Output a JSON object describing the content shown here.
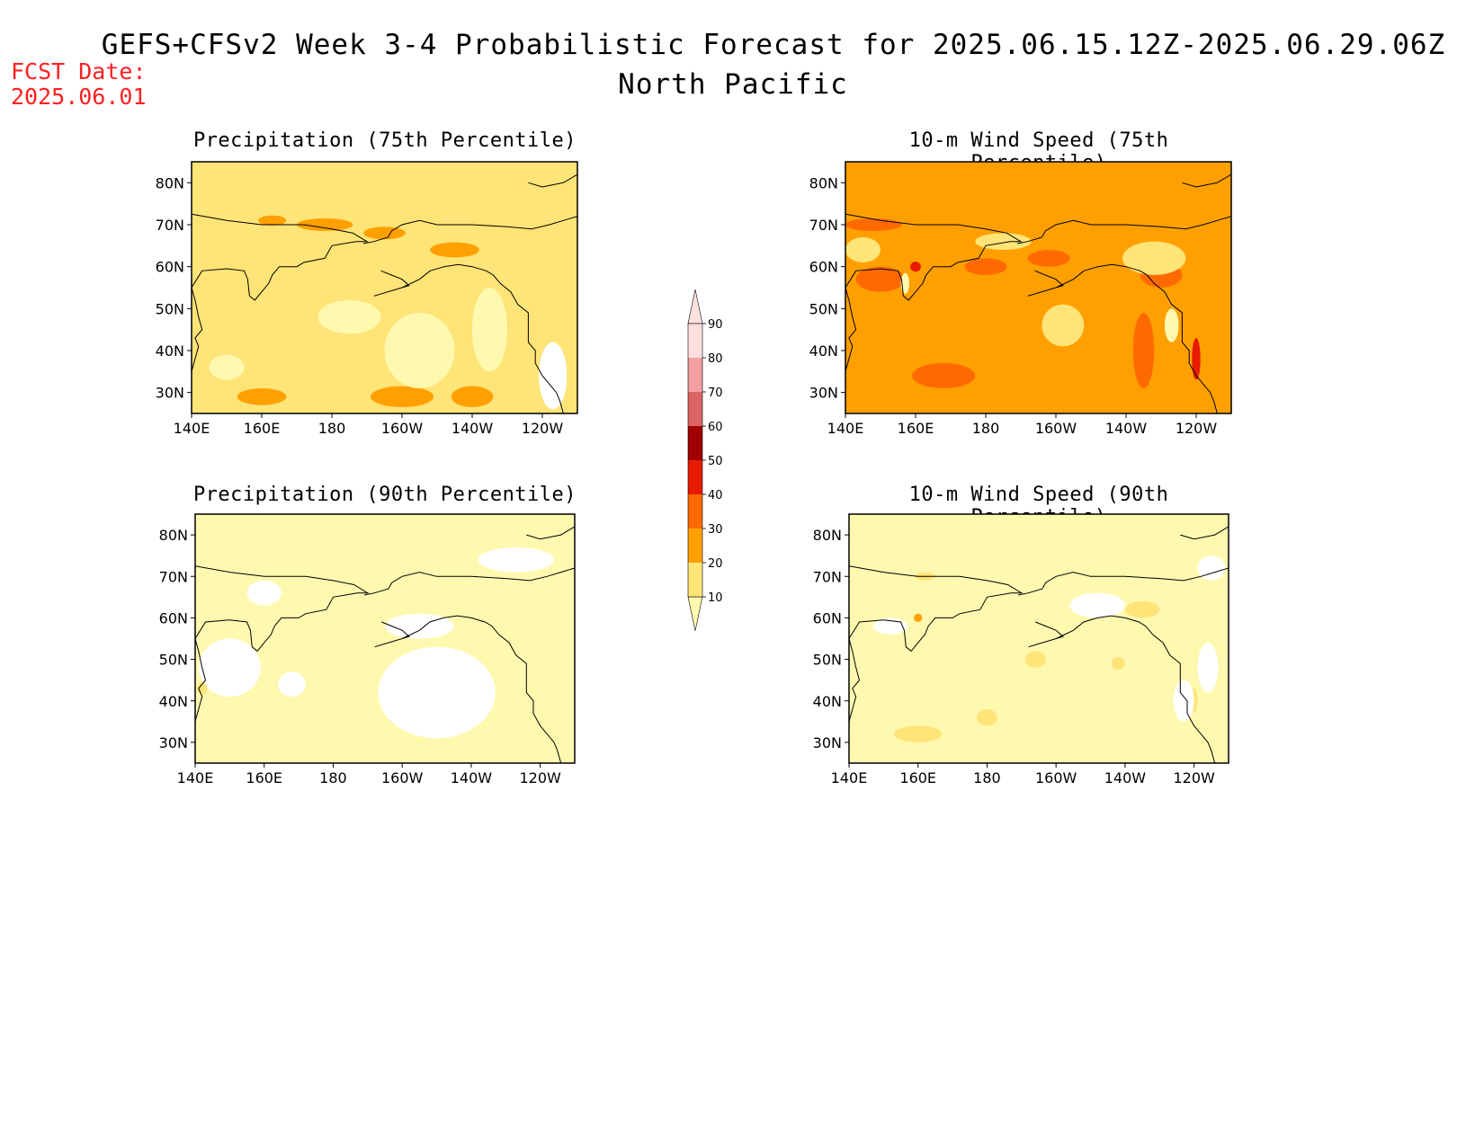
{
  "header": {
    "title": "GEFS+CFSv2 Week 3-4 Probabilistic Forecast for 2025.06.15.12Z-2025.06.29.06Z",
    "subtitle": "North Pacific",
    "fcst_label": "FCST Date:",
    "fcst_date": "2025.06.01"
  },
  "panels": [
    {
      "id": "precip75",
      "title": "Precipitation (75th Percentile)",
      "base_level": 20,
      "blobs": [
        {
          "level": 30,
          "lon": 163,
          "lat": 71,
          "rlon": 4,
          "rlat": 1.2
        },
        {
          "level": 30,
          "lon": 178,
          "lat": 70,
          "rlon": 8,
          "rlat": 1.5
        },
        {
          "level": 30,
          "lon": 195,
          "lat": 68,
          "rlon": 6,
          "rlat": 1.5
        },
        {
          "level": 30,
          "lon": 215,
          "lat": 64,
          "rlon": 7,
          "rlat": 1.8
        },
        {
          "level": 30,
          "lon": 160,
          "lat": 29,
          "rlon": 7,
          "rlat": 2
        },
        {
          "level": 30,
          "lon": 200,
          "lat": 29,
          "rlon": 9,
          "rlat": 2.5
        },
        {
          "level": 30,
          "lon": 220,
          "lat": 29,
          "rlon": 6,
          "rlat": 2.5
        },
        {
          "level": 10,
          "lon": 205,
          "lat": 40,
          "rlon": 10,
          "rlat": 9
        },
        {
          "level": 10,
          "lon": 185,
          "lat": 48,
          "rlon": 9,
          "rlat": 4
        },
        {
          "level": 10,
          "lon": 225,
          "lat": 45,
          "rlon": 5,
          "rlat": 10
        },
        {
          "level": 10,
          "lon": 150,
          "lat": 36,
          "rlon": 5,
          "rlat": 3
        },
        {
          "level": 0,
          "lon": 243,
          "lat": 34,
          "rlon": 4,
          "rlat": 8
        }
      ]
    },
    {
      "id": "wind75",
      "title": "10-m Wind Speed (75th Percentile)",
      "base_level": 30,
      "blobs": [
        {
          "level": 40,
          "lon": 150,
          "lat": 57,
          "rlon": 7,
          "rlat": 3
        },
        {
          "level": 40,
          "lon": 148,
          "lat": 70,
          "rlon": 8,
          "rlat": 1.5
        },
        {
          "level": 40,
          "lon": 180,
          "lat": 60,
          "rlon": 6,
          "rlat": 2
        },
        {
          "level": 40,
          "lon": 198,
          "lat": 62,
          "rlon": 6,
          "rlat": 2
        },
        {
          "level": 40,
          "lon": 168,
          "lat": 34,
          "rlon": 9,
          "rlat": 3
        },
        {
          "level": 40,
          "lon": 225,
          "lat": 40,
          "rlon": 3,
          "rlat": 9
        },
        {
          "level": 40,
          "lon": 230,
          "lat": 58,
          "rlon": 6,
          "rlat": 3
        },
        {
          "level": 50,
          "lon": 240,
          "lat": 38,
          "rlon": 1.2,
          "rlat": 5
        },
        {
          "level": 50,
          "lon": 160,
          "lat": 60,
          "rlon": 1.5,
          "rlat": 1.2
        },
        {
          "level": 20,
          "lon": 202,
          "lat": 46,
          "rlon": 6,
          "rlat": 5
        },
        {
          "level": 20,
          "lon": 228,
          "lat": 62,
          "rlon": 9,
          "rlat": 4
        },
        {
          "level": 20,
          "lon": 185,
          "lat": 66,
          "rlon": 8,
          "rlat": 2
        },
        {
          "level": 20,
          "lon": 145,
          "lat": 64,
          "rlon": 5,
          "rlat": 3
        },
        {
          "level": 10,
          "lon": 233,
          "lat": 46,
          "rlon": 2,
          "rlat": 4
        },
        {
          "level": 10,
          "lon": 157,
          "lat": 56,
          "rlon": 1.2,
          "rlat": 2.5
        }
      ]
    },
    {
      "id": "precip90",
      "title": "Precipitation (90th Percentile)",
      "base_level": 10,
      "blobs": [
        {
          "level": 0,
          "lon": 210,
          "lat": 42,
          "rlon": 17,
          "rlat": 11
        },
        {
          "level": 0,
          "lon": 233,
          "lat": 74,
          "rlon": 11,
          "rlat": 3
        },
        {
          "level": 0,
          "lon": 150,
          "lat": 48,
          "rlon": 9,
          "rlat": 7
        },
        {
          "level": 0,
          "lon": 160,
          "lat": 66,
          "rlon": 5,
          "rlat": 3
        },
        {
          "level": 0,
          "lon": 205,
          "lat": 58,
          "rlon": 10,
          "rlat": 3
        },
        {
          "level": 0,
          "lon": 168,
          "lat": 44,
          "rlon": 4,
          "rlat": 3
        },
        {
          "level": 20,
          "lon": 142,
          "lat": 43,
          "rlon": 1.5,
          "rlat": 1.5
        }
      ]
    },
    {
      "id": "wind90",
      "title": "10-m Wind Speed (90th Percentile)",
      "base_level": 10,
      "blobs": [
        {
          "level": 20,
          "lon": 160,
          "lat": 32,
          "rlon": 7,
          "rlat": 2
        },
        {
          "level": 20,
          "lon": 180,
          "lat": 36,
          "rlon": 3,
          "rlat": 2
        },
        {
          "level": 20,
          "lon": 194,
          "lat": 50,
          "rlon": 3,
          "rlat": 2
        },
        {
          "level": 20,
          "lon": 225,
          "lat": 62,
          "rlon": 5,
          "rlat": 2
        },
        {
          "level": 20,
          "lon": 218,
          "lat": 49,
          "rlon": 2,
          "rlat": 1.5
        },
        {
          "level": 20,
          "lon": 240,
          "lat": 40,
          "rlon": 1,
          "rlat": 3
        },
        {
          "level": 20,
          "lon": 162,
          "lat": 70,
          "rlon": 3,
          "rlat": 1
        },
        {
          "level": 30,
          "lon": 160,
          "lat": 60,
          "rlon": 1.2,
          "rlat": 1
        },
        {
          "level": 0,
          "lon": 237,
          "lat": 40,
          "rlon": 3,
          "rlat": 5
        },
        {
          "level": 0,
          "lon": 212,
          "lat": 63,
          "rlon": 8,
          "rlat": 3
        },
        {
          "level": 0,
          "lon": 152,
          "lat": 58,
          "rlon": 5,
          "rlat": 2
        },
        {
          "level": 0,
          "lon": 244,
          "lat": 48,
          "rlon": 3,
          "rlat": 6
        },
        {
          "level": 0,
          "lon": 245,
          "lat": 72,
          "rlon": 4,
          "rlat": 3
        }
      ]
    }
  ],
  "axes": {
    "lon_ticks": [
      {
        "lon": 140,
        "label": "140E"
      },
      {
        "lon": 160,
        "label": "160E"
      },
      {
        "lon": 180,
        "label": "180"
      },
      {
        "lon": 200,
        "label": "160W"
      },
      {
        "lon": 220,
        "label": "140W"
      },
      {
        "lon": 240,
        "label": "120W"
      }
    ],
    "lat_ticks": [
      {
        "lat": 30,
        "label": "30N"
      },
      {
        "lat": 40,
        "label": "40N"
      },
      {
        "lat": 50,
        "label": "50N"
      },
      {
        "lat": 60,
        "label": "60N"
      },
      {
        "lat": 70,
        "label": "70N"
      },
      {
        "lat": 80,
        "label": "80N"
      }
    ],
    "lon_range": [
      140,
      250
    ],
    "lat_range": [
      25,
      85
    ]
  },
  "colorbar": {
    "levels": [
      {
        "value": 10,
        "label": "10",
        "color": "#fff9b0"
      },
      {
        "value": 20,
        "label": "20",
        "color": "#ffe478"
      },
      {
        "value": 30,
        "label": "30",
        "color": "#ffa000"
      },
      {
        "value": 40,
        "label": "40",
        "color": "#ff6a00"
      },
      {
        "value": 50,
        "label": "50",
        "color": "#e81a00"
      },
      {
        "value": 60,
        "label": "60",
        "color": "#a00000"
      },
      {
        "value": 70,
        "label": "70",
        "color": "#dc6464"
      },
      {
        "value": 80,
        "label": "80",
        "color": "#f4a0a0"
      },
      {
        "value": 90,
        "label": "90",
        "color": "#ffe0e0"
      }
    ]
  },
  "coastline": {
    "asia": [
      [
        140,
        35
      ],
      [
        141,
        38
      ],
      [
        142,
        41
      ],
      [
        141,
        43
      ],
      [
        143,
        45
      ],
      [
        142,
        48
      ],
      [
        141,
        52
      ],
      [
        140,
        55
      ],
      [
        143,
        59
      ],
      [
        150,
        59.5
      ],
      [
        155,
        59
      ],
      [
        156,
        57
      ],
      [
        156.5,
        53
      ],
      [
        158,
        52
      ],
      [
        160,
        54
      ],
      [
        162,
        56
      ],
      [
        163,
        58
      ],
      [
        165,
        60
      ],
      [
        170,
        60
      ],
      [
        172,
        61
      ],
      [
        178,
        62
      ],
      [
        180,
        65
      ],
      [
        187,
        66
      ],
      [
        190,
        66
      ],
      [
        186,
        68
      ],
      [
        180,
        69
      ],
      [
        172,
        70
      ],
      [
        160,
        70
      ],
      [
        150,
        71
      ],
      [
        140,
        72.5
      ]
    ],
    "america": [
      [
        189,
        65.5
      ],
      [
        192,
        66
      ],
      [
        196,
        67
      ],
      [
        197,
        68.5
      ],
      [
        200,
        70
      ],
      [
        205,
        71
      ],
      [
        210,
        70
      ],
      [
        220,
        70
      ],
      [
        230,
        69.5
      ],
      [
        237,
        69
      ],
      [
        242,
        70
      ],
      [
        246,
        71
      ],
      [
        250,
        72
      ]
    ],
    "alaska_south": [
      [
        194,
        59
      ],
      [
        197,
        58
      ],
      [
        200,
        57
      ],
      [
        202,
        55.5
      ],
      [
        196,
        54
      ],
      [
        192,
        53
      ],
      [
        200,
        55
      ],
      [
        205,
        57
      ],
      [
        208,
        59
      ],
      [
        212,
        60
      ],
      [
        216,
        60.5
      ],
      [
        220,
        60
      ],
      [
        224,
        59
      ],
      [
        226,
        58
      ],
      [
        228,
        56
      ],
      [
        231,
        54
      ],
      [
        233,
        51
      ],
      [
        236,
        49
      ],
      [
        236,
        46
      ],
      [
        236,
        42
      ],
      [
        238,
        40
      ],
      [
        238,
        37
      ],
      [
        240,
        34
      ],
      [
        242,
        32
      ],
      [
        244,
        30
      ],
      [
        245,
        28
      ],
      [
        246,
        25
      ]
    ],
    "greenland": [
      [
        236,
        80
      ],
      [
        240,
        79
      ],
      [
        246,
        80
      ],
      [
        250,
        82
      ]
    ]
  }
}
